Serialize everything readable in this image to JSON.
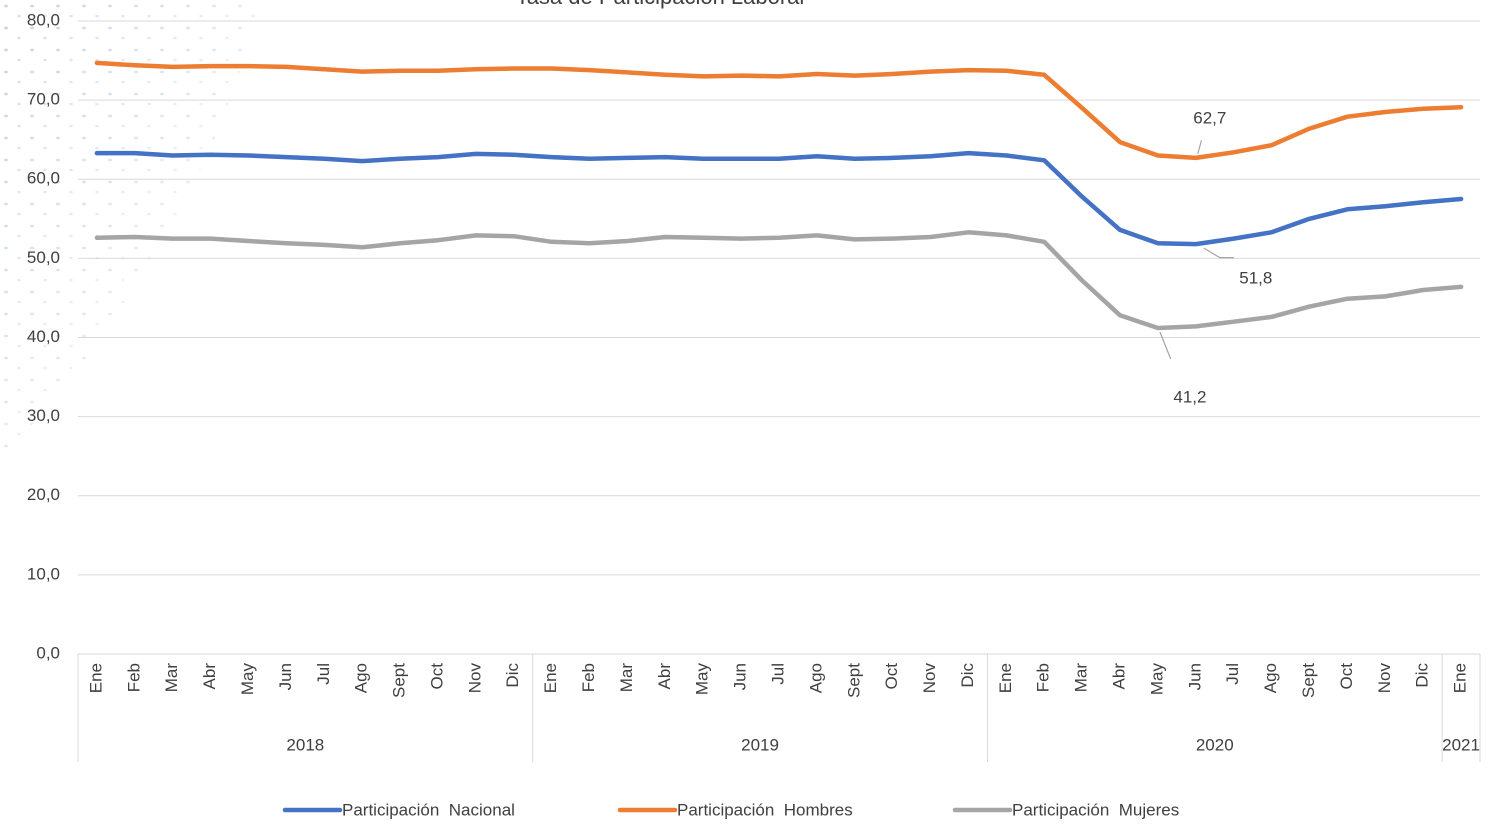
{
  "chart_data": {
    "type": "line",
    "title": "Tasa de Participación Laboral",
    "categories": [
      "Ene",
      "Feb",
      "Mar",
      "Abr",
      "May",
      "Jun",
      "Jul",
      "Ago",
      "Sept",
      "Oct",
      "Nov",
      "Dic",
      "Ene",
      "Feb",
      "Mar",
      "Abr",
      "May",
      "Jun",
      "Jul",
      "Ago",
      "Sept",
      "Oct",
      "Nov",
      "Dic",
      "Ene",
      "Feb",
      "Mar",
      "Abr",
      "May",
      "Jun",
      "Jul",
      "Ago",
      "Sept",
      "Oct",
      "Nov",
      "Dic",
      "Ene"
    ],
    "years": [
      "2018",
      null,
      null,
      null,
      null,
      null,
      null,
      null,
      null,
      null,
      null,
      null,
      "2019",
      null,
      null,
      null,
      null,
      null,
      null,
      null,
      null,
      null,
      null,
      null,
      "2020",
      null,
      null,
      null,
      null,
      null,
      null,
      null,
      null,
      null,
      null,
      null,
      "2021"
    ],
    "series": [
      {
        "name": "Participación  Nacional",
        "color": "#4472c4",
        "values": [
          63.3,
          63.3,
          63.0,
          63.1,
          63.0,
          62.8,
          62.6,
          62.3,
          62.6,
          62.8,
          63.2,
          63.1,
          62.8,
          62.6,
          62.7,
          62.8,
          62.6,
          62.6,
          62.6,
          62.9,
          62.6,
          62.7,
          62.9,
          63.3,
          63.0,
          62.4,
          57.8,
          53.6,
          51.9,
          51.8,
          52.5,
          53.3,
          55.0,
          56.2,
          56.6,
          57.1,
          57.5
        ],
        "value_labels": [
          null,
          null,
          null,
          null,
          null,
          null,
          null,
          null,
          null,
          null,
          null,
          null,
          null,
          null,
          null,
          null,
          null,
          null,
          null,
          null,
          null,
          null,
          null,
          null,
          null,
          null,
          null,
          null,
          null,
          "51,8",
          null,
          null,
          null,
          null,
          null,
          null,
          null
        ]
      },
      {
        "name": "Participación  Hombres",
        "color": "#ed7d31",
        "values": [
          74.7,
          74.4,
          74.2,
          74.3,
          74.3,
          74.2,
          73.9,
          73.6,
          73.7,
          73.7,
          73.9,
          74.0,
          74.0,
          73.8,
          73.5,
          73.2,
          73.0,
          73.1,
          73.0,
          73.3,
          73.1,
          73.3,
          73.6,
          73.8,
          73.7,
          73.2,
          69.0,
          64.7,
          63.0,
          62.7,
          63.4,
          64.3,
          66.4,
          67.9,
          68.5,
          68.9,
          69.1
        ],
        "value_labels": [
          null,
          null,
          null,
          null,
          null,
          null,
          null,
          null,
          null,
          null,
          null,
          null,
          null,
          null,
          null,
          null,
          null,
          null,
          null,
          null,
          null,
          null,
          null,
          null,
          null,
          null,
          null,
          null,
          null,
          "62,7",
          null,
          null,
          null,
          null,
          null,
          null,
          null
        ]
      },
      {
        "name": "Participación  Mujeres",
        "color": "#a5a5a5",
        "values": [
          52.6,
          52.7,
          52.5,
          52.5,
          52.2,
          51.9,
          51.7,
          51.4,
          51.9,
          52.3,
          52.9,
          52.8,
          52.1,
          51.9,
          52.2,
          52.7,
          52.6,
          52.5,
          52.6,
          52.9,
          52.4,
          52.5,
          52.7,
          53.3,
          52.9,
          52.1,
          47.2,
          42.8,
          41.2,
          41.4,
          42.0,
          42.6,
          43.9,
          44.9,
          45.2,
          46.0,
          46.4
        ],
        "value_labels": [
          null,
          null,
          null,
          null,
          null,
          null,
          null,
          null,
          null,
          null,
          null,
          null,
          null,
          null,
          null,
          null,
          null,
          null,
          null,
          null,
          null,
          null,
          null,
          null,
          null,
          null,
          null,
          null,
          "41,2",
          null,
          null,
          null,
          null,
          null,
          null,
          null,
          null
        ]
      }
    ],
    "ylim": [
      0,
      80
    ],
    "yticks": [
      {
        "value": 0,
        "label": "0,0"
      },
      {
        "value": 10,
        "label": "10,0"
      },
      {
        "value": 20,
        "label": "20,0"
      },
      {
        "value": 30,
        "label": "30,0"
      },
      {
        "value": 40,
        "label": "40,0"
      },
      {
        "value": 50,
        "label": "50,0"
      },
      {
        "value": 60,
        "label": "60,0"
      },
      {
        "value": 70,
        "label": "70,0"
      },
      {
        "value": 80,
        "label": "80,0"
      }
    ],
    "grid": true,
    "legend": "bottom"
  }
}
